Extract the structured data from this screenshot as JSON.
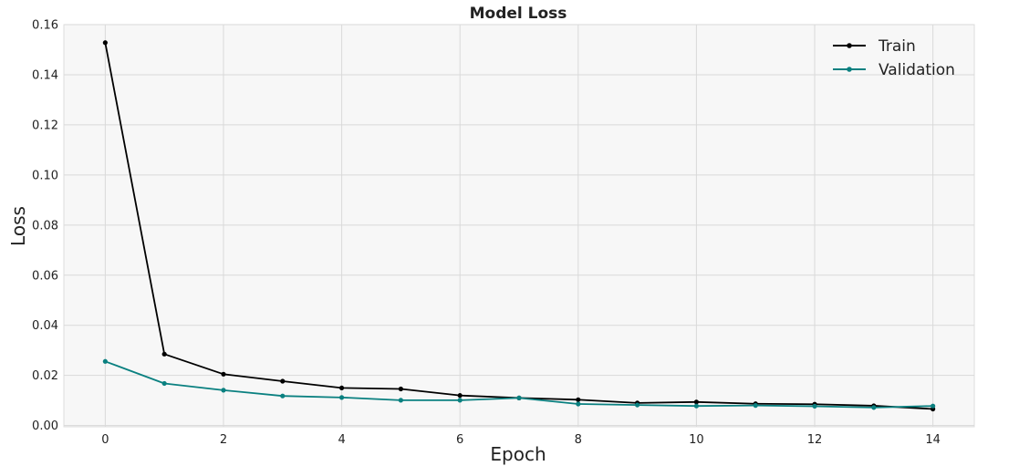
{
  "chart_data": {
    "type": "line",
    "title": "Model Loss",
    "xlabel": "Epoch",
    "ylabel": "Loss",
    "xlim": [
      -0.7,
      14.7
    ],
    "ylim": [
      -0.0005,
      0.16
    ],
    "x_ticks": [
      0,
      2,
      4,
      6,
      8,
      10,
      12,
      14
    ],
    "y_ticks": [
      0.0,
      0.02,
      0.04,
      0.06,
      0.08,
      0.1,
      0.12,
      0.14,
      0.16
    ],
    "y_tick_labels": [
      "0.00",
      "0.02",
      "0.04",
      "0.06",
      "0.08",
      "0.10",
      "0.12",
      "0.14",
      "0.16"
    ],
    "grid": true,
    "legend_position": "top-right",
    "x": [
      0,
      1,
      2,
      3,
      4,
      5,
      6,
      7,
      8,
      9,
      10,
      11,
      12,
      13,
      14
    ],
    "series": [
      {
        "name": "Train",
        "color": "#000000",
        "values": [
          0.1528,
          0.0285,
          0.0205,
          0.0177,
          0.015,
          0.0146,
          0.012,
          0.011,
          0.0103,
          0.009,
          0.0094,
          0.0087,
          0.0085,
          0.0079,
          0.0066
        ]
      },
      {
        "name": "Validation",
        "color": "#0a8080",
        "values": [
          0.0256,
          0.0168,
          0.0141,
          0.0118,
          0.0112,
          0.0101,
          0.0101,
          0.011,
          0.0086,
          0.0082,
          0.0078,
          0.008,
          0.0077,
          0.0072,
          0.0078
        ]
      }
    ]
  }
}
